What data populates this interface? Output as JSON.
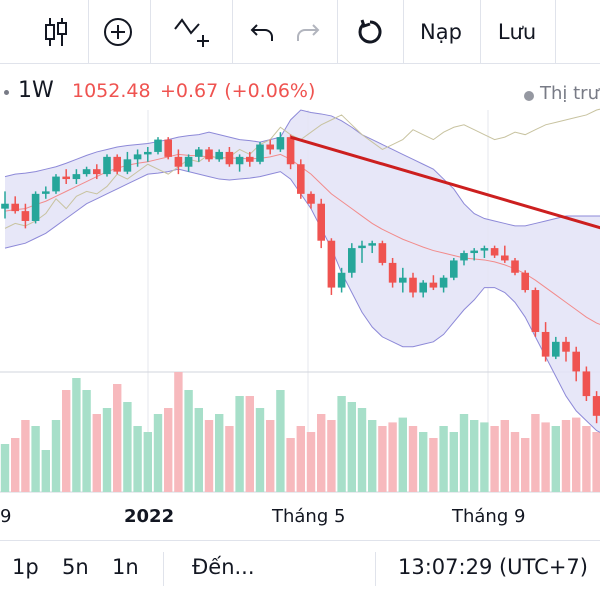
{
  "toolbar": {
    "load_label": "Nạp",
    "save_label": "Lưu",
    "icons": [
      "candles-icon",
      "plus-circle-icon",
      "indicators-icon",
      "undo-icon",
      "redo-icon",
      "reset-icon"
    ]
  },
  "legend": {
    "timeframe": "1W",
    "price": "1052.48",
    "change": "+0.67 (+0.06%)",
    "indicator": "Thị trư"
  },
  "colors": {
    "up": "#26a69a",
    "down": "#ef5350",
    "up_vol": "#a7dfc9",
    "down_vol": "#f7b9bd",
    "band_fill": "#e3e3f7",
    "band_line": "#8d89d8",
    "basis_line": "#f28b8b",
    "trendline": "#cc1f1f",
    "overlay_line": "#c8c3a0"
  },
  "xaxis": {
    "labels": [
      "9",
      "2022",
      "Tháng 5",
      "Tháng 9"
    ]
  },
  "bottombar": {
    "range_1": "1p",
    "range_2": "5n",
    "range_3": "1n",
    "goto": "Đến...",
    "clock": "13:07:29 (UTC+7)"
  },
  "chart_data": {
    "type": "candlestick",
    "ylim": [
      880,
      1620
    ],
    "candles": [
      [
        1420,
        1455,
        1400,
        1430
      ],
      [
        1430,
        1445,
        1410,
        1415
      ],
      [
        1415,
        1430,
        1380,
        1395
      ],
      [
        1395,
        1455,
        1390,
        1450
      ],
      [
        1450,
        1465,
        1440,
        1455
      ],
      [
        1455,
        1490,
        1450,
        1485
      ],
      [
        1485,
        1500,
        1470,
        1480
      ],
      [
        1480,
        1500,
        1470,
        1490
      ],
      [
        1490,
        1505,
        1485,
        1500
      ],
      [
        1500,
        1510,
        1480,
        1490
      ],
      [
        1490,
        1530,
        1485,
        1525
      ],
      [
        1525,
        1530,
        1490,
        1495
      ],
      [
        1495,
        1535,
        1490,
        1520
      ],
      [
        1520,
        1540,
        1505,
        1530
      ],
      [
        1530,
        1545,
        1515,
        1535
      ],
      [
        1535,
        1565,
        1530,
        1560
      ],
      [
        1560,
        1565,
        1520,
        1525
      ],
      [
        1525,
        1540,
        1490,
        1505
      ],
      [
        1505,
        1530,
        1495,
        1525
      ],
      [
        1525,
        1545,
        1515,
        1540
      ],
      [
        1540,
        1545,
        1515,
        1520
      ],
      [
        1520,
        1540,
        1515,
        1535
      ],
      [
        1535,
        1545,
        1505,
        1510
      ],
      [
        1510,
        1530,
        1495,
        1525
      ],
      [
        1525,
        1535,
        1505,
        1515
      ],
      [
        1515,
        1555,
        1510,
        1550
      ],
      [
        1550,
        1560,
        1530,
        1540
      ],
      [
        1540,
        1575,
        1535,
        1565
      ],
      [
        1565,
        1570,
        1500,
        1510
      ],
      [
        1510,
        1520,
        1440,
        1450
      ],
      [
        1450,
        1455,
        1420,
        1430
      ],
      [
        1430,
        1440,
        1340,
        1355
      ],
      [
        1355,
        1360,
        1245,
        1260
      ],
      [
        1260,
        1300,
        1250,
        1290
      ],
      [
        1290,
        1350,
        1280,
        1340
      ],
      [
        1340,
        1355,
        1310,
        1345
      ],
      [
        1345,
        1355,
        1330,
        1350
      ],
      [
        1350,
        1355,
        1305,
        1310
      ],
      [
        1310,
        1320,
        1260,
        1270
      ],
      [
        1270,
        1300,
        1250,
        1280
      ],
      [
        1280,
        1290,
        1240,
        1250
      ],
      [
        1250,
        1275,
        1240,
        1270
      ],
      [
        1270,
        1285,
        1255,
        1260
      ],
      [
        1260,
        1285,
        1250,
        1280
      ],
      [
        1280,
        1320,
        1275,
        1315
      ],
      [
        1315,
        1335,
        1305,
        1330
      ],
      [
        1330,
        1340,
        1315,
        1335
      ],
      [
        1335,
        1345,
        1320,
        1340
      ],
      [
        1340,
        1345,
        1320,
        1325
      ],
      [
        1325,
        1345,
        1310,
        1315
      ],
      [
        1315,
        1320,
        1285,
        1290
      ],
      [
        1290,
        1295,
        1250,
        1255
      ],
      [
        1255,
        1260,
        1160,
        1170
      ],
      [
        1170,
        1190,
        1110,
        1120
      ],
      [
        1120,
        1160,
        1115,
        1150
      ],
      [
        1150,
        1160,
        1110,
        1130
      ],
      [
        1130,
        1140,
        1070,
        1090
      ],
      [
        1090,
        1100,
        1030,
        1040
      ],
      [
        1040,
        1050,
        985,
        1000
      ],
      [
        1000,
        1060,
        995,
        1055
      ]
    ],
    "volume": [
      40,
      45,
      60,
      55,
      35,
      60,
      85,
      95,
      85,
      65,
      70,
      90,
      75,
      55,
      50,
      65,
      70,
      100,
      85,
      70,
      60,
      65,
      55,
      80,
      80,
      70,
      60,
      85,
      45,
      55,
      50,
      65,
      60,
      80,
      75,
      70,
      60,
      55,
      58,
      62,
      55,
      50,
      45,
      55,
      50,
      65,
      60,
      58,
      55,
      60,
      50,
      45,
      65,
      58,
      55,
      60,
      62,
      55,
      50,
      58
    ],
    "bollinger_upper": [
      1485,
      1490,
      1492,
      1495,
      1500,
      1505,
      1512,
      1520,
      1528,
      1535,
      1540,
      1545,
      1548,
      1550,
      1552,
      1556,
      1560,
      1565,
      1568,
      1570,
      1575,
      1570,
      1565,
      1560,
      1558,
      1555,
      1560,
      1565,
      1600,
      1620,
      1615,
      1612,
      1608,
      1598,
      1585,
      1570,
      1560,
      1550,
      1540,
      1530,
      1520,
      1510,
      1500,
      1480,
      1460,
      1430,
      1410,
      1400,
      1395,
      1390,
      1385,
      1385,
      1390,
      1395,
      1400,
      1405,
      1405,
      1405,
      1405,
      1405
    ],
    "bollinger_lower": [
      1340,
      1345,
      1350,
      1360,
      1370,
      1385,
      1400,
      1415,
      1430,
      1440,
      1450,
      1460,
      1470,
      1480,
      1490,
      1492,
      1495,
      1500,
      1495,
      1490,
      1485,
      1480,
      1478,
      1480,
      1482,
      1485,
      1490,
      1495,
      1480,
      1450,
      1420,
      1380,
      1340,
      1290,
      1250,
      1210,
      1180,
      1160,
      1150,
      1140,
      1140,
      1145,
      1150,
      1165,
      1190,
      1215,
      1235,
      1260,
      1260,
      1250,
      1230,
      1200,
      1160,
      1120,
      1080,
      1040,
      1010,
      990,
      970,
      960
    ],
    "basis": [
      1415,
      1418,
      1420,
      1428,
      1435,
      1445,
      1455,
      1465,
      1475,
      1485,
      1495,
      1502,
      1508,
      1512,
      1515,
      1520,
      1525,
      1530,
      1528,
      1527,
      1525,
      1524,
      1523,
      1522,
      1521,
      1522,
      1525,
      1530,
      1520,
      1505,
      1490,
      1470,
      1450,
      1435,
      1420,
      1405,
      1390,
      1378,
      1368,
      1358,
      1350,
      1342,
      1335,
      1330,
      1325,
      1320,
      1318,
      1316,
      1312,
      1306,
      1298,
      1288,
      1275,
      1260,
      1245,
      1230,
      1215,
      1200,
      1188,
      1180
    ],
    "overlay": [
      1380,
      1390,
      1385,
      1395,
      1410,
      1440,
      1420,
      1445,
      1455,
      1450,
      1465,
      1490,
      1480,
      1495,
      1510,
      1500,
      1490,
      1505,
      1520,
      1515,
      1530,
      1520,
      1525,
      1540,
      1530,
      1550,
      1560,
      1585,
      1570,
      1560,
      1575,
      1590,
      1600,
      1610,
      1590,
      1570,
      1555,
      1540,
      1550,
      1560,
      1580,
      1570,
      1560,
      1575,
      1585,
      1590,
      1580,
      1570,
      1560,
      1565,
      1575,
      1570,
      1580,
      1590,
      1595,
      1600,
      1605,
      1610,
      1620,
      1625
    ],
    "trendline": {
      "from": [
        28,
        1565
      ],
      "to": [
        59,
        1390
      ]
    }
  }
}
